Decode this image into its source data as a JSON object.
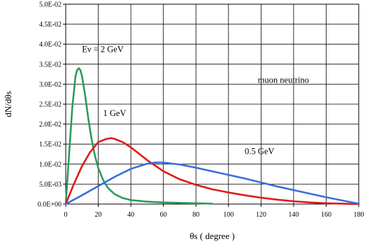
{
  "chart_data": {
    "type": "line",
    "xlabel": "θs  ( degree )",
    "ylabel": "dN/dθs",
    "xlim": [
      0,
      180
    ],
    "ylim": [
      0,
      0.05
    ],
    "xticks": [
      0,
      20,
      40,
      60,
      80,
      100,
      120,
      140,
      160,
      180
    ],
    "xtick_labels": [
      "0",
      "20",
      "40",
      "60",
      "80",
      "100",
      "120",
      "140",
      "160",
      "180"
    ],
    "yticks": [
      0,
      0.005,
      0.01,
      0.015,
      0.02,
      0.025,
      0.03,
      0.035,
      0.04,
      0.045,
      0.05
    ],
    "ytick_labels": [
      "0.0E+00",
      "5.0E-03",
      "1.0E-02",
      "1.5E-02",
      "2.0E-02",
      "2.5E-02",
      "3.0E-02",
      "3.5E-02",
      "4.0E-02",
      "4.5E-02",
      "5.0E-02"
    ],
    "grid": true,
    "legend": "none",
    "series": [
      {
        "color": "#2e9a5e",
        "points": [
          [
            0,
            0
          ],
          [
            2,
            0.012
          ],
          [
            4,
            0.024
          ],
          [
            6,
            0.032
          ],
          [
            7,
            0.0335
          ],
          [
            8,
            0.034
          ],
          [
            9,
            0.0335
          ],
          [
            10,
            0.032
          ],
          [
            12,
            0.027
          ],
          [
            14,
            0.021
          ],
          [
            16,
            0.016
          ],
          [
            18,
            0.012
          ],
          [
            20,
            0.009
          ],
          [
            23,
            0.006
          ],
          [
            26,
            0.004
          ],
          [
            30,
            0.0025
          ],
          [
            35,
            0.0015
          ],
          [
            40,
            0.001
          ],
          [
            50,
            0.0006
          ],
          [
            60,
            0.0004
          ],
          [
            70,
            0.0003
          ],
          [
            80,
            0.0002
          ],
          [
            90,
            0.0001
          ]
        ]
      },
      {
        "color": "#e01a1a",
        "points": [
          [
            0,
            0
          ],
          [
            5,
            0.005
          ],
          [
            10,
            0.0095
          ],
          [
            15,
            0.013
          ],
          [
            20,
            0.0155
          ],
          [
            25,
            0.0163
          ],
          [
            28,
            0.0165
          ],
          [
            30,
            0.0163
          ],
          [
            35,
            0.0155
          ],
          [
            40,
            0.0142
          ],
          [
            50,
            0.011
          ],
          [
            60,
            0.0082
          ],
          [
            70,
            0.0062
          ],
          [
            80,
            0.0048
          ],
          [
            90,
            0.0037
          ],
          [
            100,
            0.0029
          ],
          [
            110,
            0.0022
          ],
          [
            120,
            0.0016
          ],
          [
            130,
            0.0011
          ],
          [
            140,
            0.0007
          ],
          [
            150,
            0.0004
          ],
          [
            160,
            0.0002
          ],
          [
            170,
            0.0001
          ],
          [
            180,
            0
          ]
        ]
      },
      {
        "color": "#3a6fd8",
        "points": [
          [
            0,
            0
          ],
          [
            10,
            0.0022
          ],
          [
            20,
            0.0045
          ],
          [
            30,
            0.0068
          ],
          [
            40,
            0.0088
          ],
          [
            50,
            0.0101
          ],
          [
            55,
            0.0104
          ],
          [
            60,
            0.0104
          ],
          [
            70,
            0.0099
          ],
          [
            80,
            0.0091
          ],
          [
            90,
            0.0082
          ],
          [
            100,
            0.0073
          ],
          [
            110,
            0.0064
          ],
          [
            120,
            0.0054
          ],
          [
            130,
            0.0044
          ],
          [
            140,
            0.0035
          ],
          [
            150,
            0.0026
          ],
          [
            160,
            0.0017
          ],
          [
            170,
            0.0009
          ],
          [
            180,
            0.0001
          ]
        ]
      }
    ],
    "annotations": [
      {
        "text": "Eν = 2 GeV",
        "x": 10,
        "y": 0.038
      },
      {
        "text": "1 GeV",
        "x": 23,
        "y": 0.022
      },
      {
        "text": "0.5 GeV",
        "x": 110,
        "y": 0.0125
      },
      {
        "text": "muon neutrino",
        "x": 118,
        "y": 0.0303
      }
    ]
  }
}
